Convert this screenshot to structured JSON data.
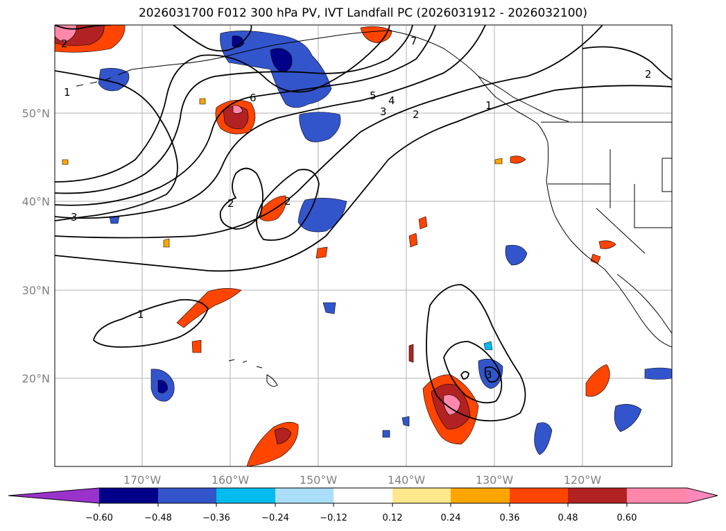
{
  "title": "2026031700 F012 300 hPa PV, IVT Landfall PC (2026031912 - 2026032100)",
  "lat_labels": [
    "50°N",
    "40°N",
    "30°N",
    "20°N"
  ],
  "lon_labels": [
    "170°W",
    "160°W",
    "150°W",
    "140°W",
    "130°W",
    "120°W"
  ],
  "contour_labels": [
    "1",
    "1",
    "1",
    "2",
    "2",
    "2",
    "2",
    "3",
    "3",
    "4",
    "5",
    "6",
    "7",
    "2",
    "3"
  ],
  "colorbar": {
    "ticks": [
      "−0.60",
      "−0.48",
      "−0.36",
      "−0.24",
      "−0.12",
      "0.12",
      "0.24",
      "0.36",
      "0.48",
      "0.60"
    ],
    "colors": [
      "#9933cc",
      "#000088",
      "#3355cc",
      "#00bbee",
      "#aaddf8",
      "#ffffff",
      "#ffe88c",
      "#ffa500",
      "#ff4500",
      "#b22222",
      "#ff88aa",
      "#ff88bb"
    ]
  },
  "fill_colors": {
    "neg_dark": "#000088",
    "neg_mid": "#3355cc",
    "neg_light": "#00bbee",
    "pos_yellow": "#ffe88c",
    "pos_orange": "#ffa500",
    "pos_red": "#ff4500",
    "pos_darkred": "#b22222",
    "pos_pink": "#ff88aa"
  }
}
